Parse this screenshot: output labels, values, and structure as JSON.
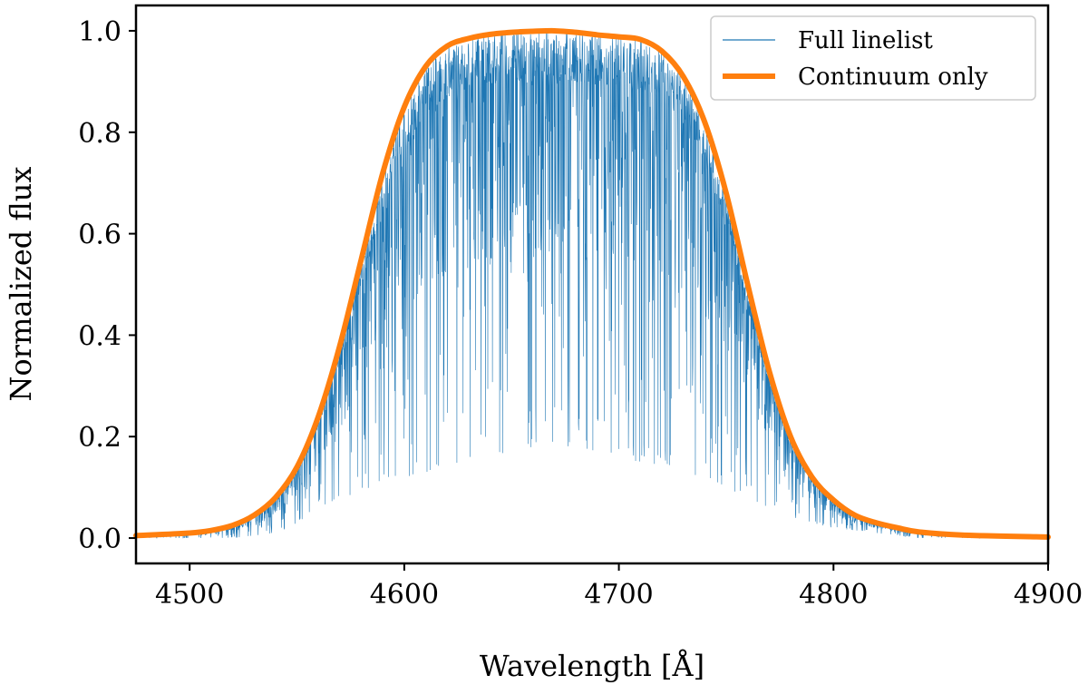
{
  "chart_data": {
    "type": "line",
    "title": "",
    "xlabel": "Wavelength [Å]",
    "ylabel": "Normalized flux",
    "xlim": [
      4475,
      4900
    ],
    "ylim": [
      -0.05,
      1.05
    ],
    "xticks": [
      4500,
      4600,
      4700,
      4800,
      4900
    ],
    "xtick_labels": [
      "4500",
      "4600",
      "4700",
      "4800",
      "4900"
    ],
    "yticks": [
      0.0,
      0.2,
      0.4,
      0.6,
      0.8,
      1.0
    ],
    "ytick_labels": [
      "0.0",
      "0.2",
      "0.4",
      "0.6",
      "0.8",
      "1.0"
    ],
    "grid": false,
    "legend_position": "top-right",
    "series": [
      {
        "name": "Full linelist",
        "color": "#1f77b4",
        "style": "thin dense absorption-line spectrum below the continuum",
        "x": [
          4475,
          4500,
          4520,
          4540,
          4550,
          4560,
          4570,
          4580,
          4590,
          4600,
          4610,
          4620,
          4630,
          4640,
          4650,
          4660,
          4670,
          4680,
          4690,
          4700,
          4710,
          4720,
          4730,
          4740,
          4750,
          4760,
          4770,
          4780,
          4790,
          4800,
          4820,
          4840,
          4900
        ],
        "min_values": [
          0.0,
          0.0,
          0.0,
          0.01,
          0.03,
          0.06,
          0.08,
          0.09,
          0.11,
          0.12,
          0.13,
          0.14,
          0.15,
          0.16,
          0.17,
          0.18,
          0.18,
          0.18,
          0.17,
          0.16,
          0.15,
          0.14,
          0.13,
          0.12,
          0.1,
          0.08,
          0.06,
          0.04,
          0.03,
          0.02,
          0.01,
          0.0,
          0.0
        ]
      },
      {
        "name": "Continuum only",
        "color": "#ff7f0e",
        "x": [
          4475,
          4500,
          4510,
          4520,
          4530,
          4540,
          4550,
          4560,
          4570,
          4580,
          4590,
          4600,
          4610,
          4620,
          4630,
          4640,
          4650,
          4660,
          4670,
          4680,
          4690,
          4700,
          4710,
          4720,
          4730,
          4740,
          4750,
          4760,
          4770,
          4780,
          4790,
          4800,
          4810,
          4820,
          4830,
          4840,
          4860,
          4900
        ],
        "values": [
          0.005,
          0.01,
          0.015,
          0.025,
          0.045,
          0.08,
          0.14,
          0.24,
          0.38,
          0.55,
          0.72,
          0.85,
          0.93,
          0.97,
          0.985,
          0.993,
          0.997,
          0.999,
          1.0,
          0.997,
          0.992,
          0.988,
          0.983,
          0.96,
          0.91,
          0.82,
          0.68,
          0.5,
          0.33,
          0.2,
          0.12,
          0.075,
          0.045,
          0.03,
          0.02,
          0.012,
          0.006,
          0.002
        ]
      }
    ]
  }
}
